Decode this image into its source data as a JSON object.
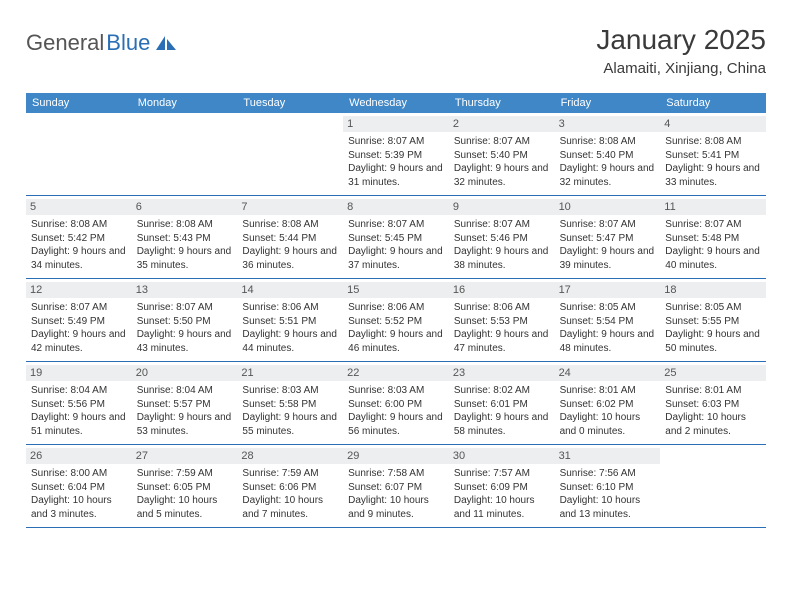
{
  "brand": {
    "part1": "General",
    "part2": "Blue"
  },
  "title": "January 2025",
  "location": "Alamaiti, Xinjiang, China",
  "colors": {
    "header_bg": "#3f87c7",
    "header_text": "#ffffff",
    "daynum_bg": "#eceef0",
    "week_border": "#2a6fb5",
    "body_text": "#333333",
    "title_text": "#3a3a3a"
  },
  "weekdays": [
    "Sunday",
    "Monday",
    "Tuesday",
    "Wednesday",
    "Thursday",
    "Friday",
    "Saturday"
  ],
  "weeks": [
    [
      {
        "day": "",
        "sunrise": "",
        "sunset": "",
        "daylight": ""
      },
      {
        "day": "",
        "sunrise": "",
        "sunset": "",
        "daylight": ""
      },
      {
        "day": "",
        "sunrise": "",
        "sunset": "",
        "daylight": ""
      },
      {
        "day": "1",
        "sunrise": "Sunrise: 8:07 AM",
        "sunset": "Sunset: 5:39 PM",
        "daylight": "Daylight: 9 hours and 31 minutes."
      },
      {
        "day": "2",
        "sunrise": "Sunrise: 8:07 AM",
        "sunset": "Sunset: 5:40 PM",
        "daylight": "Daylight: 9 hours and 32 minutes."
      },
      {
        "day": "3",
        "sunrise": "Sunrise: 8:08 AM",
        "sunset": "Sunset: 5:40 PM",
        "daylight": "Daylight: 9 hours and 32 minutes."
      },
      {
        "day": "4",
        "sunrise": "Sunrise: 8:08 AM",
        "sunset": "Sunset: 5:41 PM",
        "daylight": "Daylight: 9 hours and 33 minutes."
      }
    ],
    [
      {
        "day": "5",
        "sunrise": "Sunrise: 8:08 AM",
        "sunset": "Sunset: 5:42 PM",
        "daylight": "Daylight: 9 hours and 34 minutes."
      },
      {
        "day": "6",
        "sunrise": "Sunrise: 8:08 AM",
        "sunset": "Sunset: 5:43 PM",
        "daylight": "Daylight: 9 hours and 35 minutes."
      },
      {
        "day": "7",
        "sunrise": "Sunrise: 8:08 AM",
        "sunset": "Sunset: 5:44 PM",
        "daylight": "Daylight: 9 hours and 36 minutes."
      },
      {
        "day": "8",
        "sunrise": "Sunrise: 8:07 AM",
        "sunset": "Sunset: 5:45 PM",
        "daylight": "Daylight: 9 hours and 37 minutes."
      },
      {
        "day": "9",
        "sunrise": "Sunrise: 8:07 AM",
        "sunset": "Sunset: 5:46 PM",
        "daylight": "Daylight: 9 hours and 38 minutes."
      },
      {
        "day": "10",
        "sunrise": "Sunrise: 8:07 AM",
        "sunset": "Sunset: 5:47 PM",
        "daylight": "Daylight: 9 hours and 39 minutes."
      },
      {
        "day": "11",
        "sunrise": "Sunrise: 8:07 AM",
        "sunset": "Sunset: 5:48 PM",
        "daylight": "Daylight: 9 hours and 40 minutes."
      }
    ],
    [
      {
        "day": "12",
        "sunrise": "Sunrise: 8:07 AM",
        "sunset": "Sunset: 5:49 PM",
        "daylight": "Daylight: 9 hours and 42 minutes."
      },
      {
        "day": "13",
        "sunrise": "Sunrise: 8:07 AM",
        "sunset": "Sunset: 5:50 PM",
        "daylight": "Daylight: 9 hours and 43 minutes."
      },
      {
        "day": "14",
        "sunrise": "Sunrise: 8:06 AM",
        "sunset": "Sunset: 5:51 PM",
        "daylight": "Daylight: 9 hours and 44 minutes."
      },
      {
        "day": "15",
        "sunrise": "Sunrise: 8:06 AM",
        "sunset": "Sunset: 5:52 PM",
        "daylight": "Daylight: 9 hours and 46 minutes."
      },
      {
        "day": "16",
        "sunrise": "Sunrise: 8:06 AM",
        "sunset": "Sunset: 5:53 PM",
        "daylight": "Daylight: 9 hours and 47 minutes."
      },
      {
        "day": "17",
        "sunrise": "Sunrise: 8:05 AM",
        "sunset": "Sunset: 5:54 PM",
        "daylight": "Daylight: 9 hours and 48 minutes."
      },
      {
        "day": "18",
        "sunrise": "Sunrise: 8:05 AM",
        "sunset": "Sunset: 5:55 PM",
        "daylight": "Daylight: 9 hours and 50 minutes."
      }
    ],
    [
      {
        "day": "19",
        "sunrise": "Sunrise: 8:04 AM",
        "sunset": "Sunset: 5:56 PM",
        "daylight": "Daylight: 9 hours and 51 minutes."
      },
      {
        "day": "20",
        "sunrise": "Sunrise: 8:04 AM",
        "sunset": "Sunset: 5:57 PM",
        "daylight": "Daylight: 9 hours and 53 minutes."
      },
      {
        "day": "21",
        "sunrise": "Sunrise: 8:03 AM",
        "sunset": "Sunset: 5:58 PM",
        "daylight": "Daylight: 9 hours and 55 minutes."
      },
      {
        "day": "22",
        "sunrise": "Sunrise: 8:03 AM",
        "sunset": "Sunset: 6:00 PM",
        "daylight": "Daylight: 9 hours and 56 minutes."
      },
      {
        "day": "23",
        "sunrise": "Sunrise: 8:02 AM",
        "sunset": "Sunset: 6:01 PM",
        "daylight": "Daylight: 9 hours and 58 minutes."
      },
      {
        "day": "24",
        "sunrise": "Sunrise: 8:01 AM",
        "sunset": "Sunset: 6:02 PM",
        "daylight": "Daylight: 10 hours and 0 minutes."
      },
      {
        "day": "25",
        "sunrise": "Sunrise: 8:01 AM",
        "sunset": "Sunset: 6:03 PM",
        "daylight": "Daylight: 10 hours and 2 minutes."
      }
    ],
    [
      {
        "day": "26",
        "sunrise": "Sunrise: 8:00 AM",
        "sunset": "Sunset: 6:04 PM",
        "daylight": "Daylight: 10 hours and 3 minutes."
      },
      {
        "day": "27",
        "sunrise": "Sunrise: 7:59 AM",
        "sunset": "Sunset: 6:05 PM",
        "daylight": "Daylight: 10 hours and 5 minutes."
      },
      {
        "day": "28",
        "sunrise": "Sunrise: 7:59 AM",
        "sunset": "Sunset: 6:06 PM",
        "daylight": "Daylight: 10 hours and 7 minutes."
      },
      {
        "day": "29",
        "sunrise": "Sunrise: 7:58 AM",
        "sunset": "Sunset: 6:07 PM",
        "daylight": "Daylight: 10 hours and 9 minutes."
      },
      {
        "day": "30",
        "sunrise": "Sunrise: 7:57 AM",
        "sunset": "Sunset: 6:09 PM",
        "daylight": "Daylight: 10 hours and 11 minutes."
      },
      {
        "day": "31",
        "sunrise": "Sunrise: 7:56 AM",
        "sunset": "Sunset: 6:10 PM",
        "daylight": "Daylight: 10 hours and 13 minutes."
      },
      {
        "day": "",
        "sunrise": "",
        "sunset": "",
        "daylight": ""
      }
    ]
  ]
}
